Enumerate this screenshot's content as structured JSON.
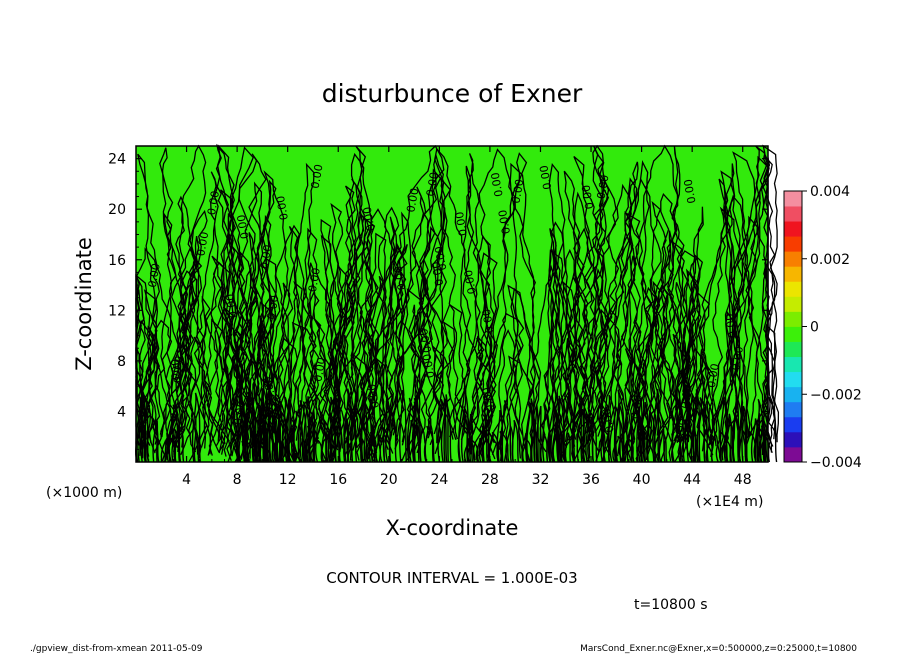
{
  "chart_data": {
    "type": "heatmap",
    "title": "disturbunce of Exner",
    "xlabel": "X-coordinate",
    "ylabel": "Z-coordinate",
    "x_unit_left": "(×1000 m)",
    "x_unit_right": "(×1E4 m)",
    "xlim": [
      0,
      50
    ],
    "ylim": [
      0,
      25
    ],
    "x_ticks": [
      4,
      8,
      12,
      16,
      20,
      24,
      28,
      32,
      36,
      40,
      44,
      48
    ],
    "x_tick_labels": [
      "4",
      "8",
      "12",
      "16",
      "20",
      "24",
      "28",
      "32",
      "36",
      "40",
      "44",
      "48"
    ],
    "y_ticks": [
      4,
      8,
      12,
      16,
      20,
      24
    ],
    "y_tick_labels": [
      "4",
      "8",
      "12",
      "16",
      "20",
      "24"
    ],
    "colorbar": {
      "min": -0.004,
      "max": 0.004,
      "tick_values": [
        0.004,
        0.002,
        0,
        -0.002,
        -0.004
      ],
      "tick_labels": [
        "0.004",
        "0.002",
        "0",
        "−0.002",
        "−0.004"
      ],
      "colors": [
        "#7d0b94",
        "#2c10b9",
        "#1a3df0",
        "#1f7cf2",
        "#18b2f0",
        "#22dcf0",
        "#18e7b0",
        "#1ee855",
        "#3cf00a",
        "#7bed00",
        "#c5ec00",
        "#ece500",
        "#f7b600",
        "#f87f00",
        "#f83d00",
        "#f0141f",
        "#f04e62",
        "#f48fa0"
      ]
    },
    "field_color": "#32ea0c",
    "contour_interval_text": "CONTOUR INTERVAL = 1.000E-03",
    "contour_label": "0.00"
  },
  "annotations": {
    "time": "t=10800 s",
    "footer_left": "./gpview_dist-from-xmean   2011-05-09",
    "footer_right": "MarsCond_Exner.nc@Exner,x=0:500000,z=0:25000,t=10800"
  }
}
